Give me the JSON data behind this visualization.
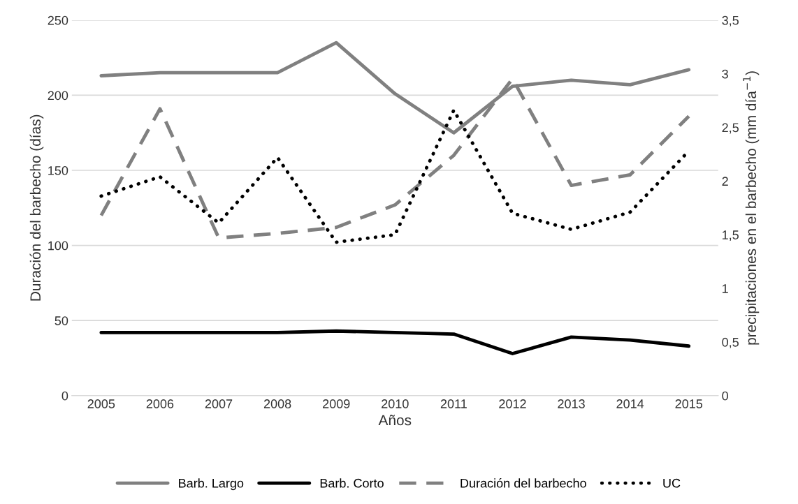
{
  "chart_data": {
    "type": "line",
    "xlabel": "Años",
    "ylabel": "Duración del barbecho (días)",
    "y2label": "precipitaciones en el barbecho (mm día$^{−1}$)",
    "categories": [
      "2005",
      "2006",
      "2007",
      "2008",
      "2009",
      "2010",
      "2011",
      "2012",
      "2013",
      "2014",
      "2015"
    ],
    "series": [
      {
        "name": "Barb. Largo",
        "color": "#808080",
        "line_style": "solid",
        "values": [
          213,
          215,
          215,
          215,
          235,
          201,
          175,
          206,
          210,
          207,
          217
        ]
      },
      {
        "name": "Barb. Corto",
        "color": "#000000",
        "line_style": "solid",
        "values": [
          42,
          42,
          42,
          42,
          43,
          42,
          41,
          28,
          39,
          37,
          33
        ]
      },
      {
        "name": "Duración del barbecho",
        "color": "#808080",
        "line_style": "dashed",
        "values": [
          120,
          191,
          105,
          108,
          112,
          127,
          160,
          211,
          140,
          147,
          186
        ]
      },
      {
        "name": "UC",
        "color": "#000000",
        "line_style": "dotted",
        "axis": "y2",
        "values": [
          1.86,
          2.04,
          1.61,
          2.22,
          1.43,
          1.5,
          2.66,
          1.7,
          1.55,
          1.71,
          2.28
        ]
      }
    ],
    "ylim": [
      0,
      250
    ],
    "yticks": [
      0,
      50,
      100,
      150,
      200,
      250
    ],
    "y2lim": [
      0,
      3.5
    ],
    "y2ticks": [
      {
        "value": 0,
        "label": "0"
      },
      {
        "value": 0.5,
        "label": "0,5"
      },
      {
        "value": 1,
        "label": "1"
      },
      {
        "value": 1.5,
        "label": "1,5"
      },
      {
        "value": 2,
        "label": "2"
      },
      {
        "value": 2.5,
        "label": "2,5"
      },
      {
        "value": 3,
        "label": "3"
      },
      {
        "value": 3.5,
        "label": "3,5"
      }
    ],
    "grid": "y",
    "legend": "bottom",
    "marker": "none"
  }
}
